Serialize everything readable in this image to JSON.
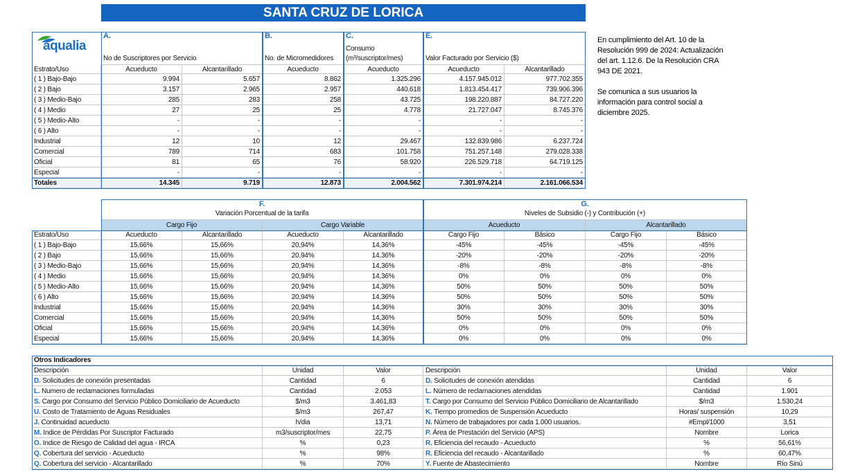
{
  "title": "SANTA CRUZ DE LORICA",
  "logo": "aqualia",
  "notice": [
    [
      "En cumplimiento del Art. 10 de la",
      "Resolución 999 de 2024: Actualización",
      "del art. 1.12.6. De la Resolución CRA",
      "943 DE 2021."
    ],
    [
      "Se comunica a sus usuarios la",
      "información para control social a",
      "diciembre 2025."
    ]
  ],
  "table1": {
    "groups": [
      {
        "letter": "A.",
        "label": "No de Suscriptores por Servicio"
      },
      {
        "letter": "B.",
        "label": "No. de Micromedidores"
      },
      {
        "letter": "C.",
        "label": "Consumo (m³/suscriptor/mes)"
      },
      {
        "letter": "E.",
        "label": "Valor Facturado por Servicio ($)"
      }
    ],
    "columns": [
      "Estrato/Uso",
      "Acueducto",
      "Alcantarillado",
      "Acueducto",
      "Acueducto",
      "Acueducto",
      "Alcantarillado"
    ],
    "rows": [
      [
        "( 1 ) Bajo-Bajo",
        "9.994",
        "5.657",
        "8.862",
        "1.325.296",
        "4.157.945.012",
        "977.702.355"
      ],
      [
        "( 2 ) Bajo",
        "3.157",
        "2.965",
        "2.957",
        "440.618",
        "1.813.454.417",
        "739.906.396"
      ],
      [
        "( 3 ) Medio-Bajo",
        "285",
        "283",
        "258",
        "43.725",
        "198.220.887",
        "84.727.220"
      ],
      [
        "( 4 ) Medio",
        "27",
        "25",
        "25",
        "4.778",
        "21.727.047",
        "8.745.376"
      ],
      [
        "( 5 ) Medio-Alto",
        "-",
        "-",
        "-",
        "-",
        "-",
        "-"
      ],
      [
        "( 6 ) Alto",
        "-",
        "-",
        "-",
        "-",
        "-",
        "-"
      ],
      [
        "Industrial",
        "12",
        "10",
        "12",
        "29.467",
        "132.839.986",
        "6.237.724"
      ],
      [
        "Comercial",
        "789",
        "714",
        "683",
        "101.758",
        "751.257.148",
        "279.028.338"
      ],
      [
        "Oficial",
        "81",
        "65",
        "76",
        "58.920",
        "226.529.718",
        "64.719.125"
      ],
      [
        "Especial",
        "-",
        "-",
        "-",
        "-",
        "-",
        "-"
      ],
      [
        "Totales",
        "14.345",
        "9.719",
        "12.873",
        "2.004.562",
        "7.301.974.214",
        "2.161.066.534"
      ]
    ]
  },
  "table2": {
    "groups": [
      {
        "letter": "F.",
        "label": "Variación Porcentual de la tarifa",
        "subgroups": [
          "Cargo Fijo",
          "Cargo Variable"
        ]
      },
      {
        "letter": "G.",
        "label": "Niveles de Subsidio (-) y Contribución (+)",
        "subgroups": [
          "Acueducto",
          "Alcantarillado"
        ]
      }
    ],
    "columns": [
      "Estrato/Uso",
      "Acueducto",
      "Alcantarillado",
      "Acueducto",
      "Alcantarillado",
      "Cargo Fijo",
      "Básico",
      "Cargo Fijo",
      "Básico"
    ],
    "rows": [
      [
        "( 1 ) Bajo-Bajo",
        "15,66%",
        "15,66%",
        "20,94%",
        "14,36%",
        "-45%",
        "-45%",
        "-45%",
        "-45%"
      ],
      [
        "( 2 ) Bajo",
        "15,66%",
        "15,66%",
        "20,94%",
        "14,36%",
        "-20%",
        "-20%",
        "-20%",
        "-20%"
      ],
      [
        "( 3 ) Medio-Bajo",
        "15,66%",
        "15,66%",
        "20,94%",
        "14,36%",
        "-8%",
        "-8%",
        "-8%",
        "-8%"
      ],
      [
        "( 4 ) Medio",
        "15,66%",
        "15,66%",
        "20,94%",
        "14,36%",
        "0%",
        "0%",
        "0%",
        "0%"
      ],
      [
        "( 5 ) Medio-Alto",
        "15,66%",
        "15,66%",
        "20,94%",
        "14,36%",
        "50%",
        "50%",
        "50%",
        "50%"
      ],
      [
        "( 6 ) Alto",
        "15,66%",
        "15,66%",
        "20,94%",
        "14,36%",
        "50%",
        "50%",
        "50%",
        "50%"
      ],
      [
        "Industrial",
        "15,66%",
        "15,66%",
        "20,94%",
        "14,36%",
        "30%",
        "30%",
        "30%",
        "30%"
      ],
      [
        "Comercial",
        "15,66%",
        "15,66%",
        "20,94%",
        "14,36%",
        "50%",
        "50%",
        "50%",
        "50%"
      ],
      [
        "Oficial",
        "15,66%",
        "15,66%",
        "20,94%",
        "14,36%",
        "0%",
        "0%",
        "0%",
        "0%"
      ],
      [
        "Especial",
        "15,66%",
        "15,66%",
        "20,94%",
        "14,36%",
        "0%",
        "0%",
        "0%",
        "0%"
      ]
    ]
  },
  "table3": {
    "title": "Otros Indicadores",
    "columns": [
      "Descripción",
      "Unidad",
      "Valor"
    ],
    "left": [
      {
        "code": "D.",
        "description": "Solicitudes de conexión presentadas",
        "unit": "Cantidad",
        "value": "6"
      },
      {
        "code": "L.",
        "description": "Numero de reclamaciones formuladas",
        "unit": "Cantidad",
        "value": "2.053"
      },
      {
        "code": "S.",
        "description": "Cargo por Consumo del Servicio Público Domiciliario de Acueducto",
        "unit": "$/m3",
        "value": "3.461,83"
      },
      {
        "code": "U.",
        "description": "Costo de Tratamiento de Aguas Residuales",
        "unit": "$/m3",
        "value": "267,47"
      },
      {
        "code": "J.",
        "description": "Continuidad acueducto",
        "unit": "h/dia",
        "value": "13,71"
      },
      {
        "code": "M.",
        "description": "Indice de Pérdidas Por Suscriptor Facturado",
        "unit": "m3/suscriptor/mes",
        "value": "22,75"
      },
      {
        "code": "O.",
        "description": "Indice de Riesgo de Calidad del agua - IRCA",
        "unit": "%",
        "value": "0,23"
      },
      {
        "code": "Q.",
        "description": "Cobertura del servicio - Acueducto",
        "unit": "%",
        "value": "98%"
      },
      {
        "code": "Q.",
        "description": "Cobertura del servicio - Alcantarillado",
        "unit": "%",
        "value": "70%"
      }
    ],
    "right": [
      {
        "code": "D.",
        "description": "Solicitudes de conexión atendidas",
        "unit": "Cantidad",
        "value": "6"
      },
      {
        "code": "L.",
        "description": "Número de reclamaciones atendidas",
        "unit": "Cantidad",
        "value": "1.901"
      },
      {
        "code": "T.",
        "description": "Cargo por Consumo del Servicio Público Domiciliario de Alcantarillado",
        "unit": "$/m3",
        "value": "1.530,24"
      },
      {
        "code": "K.",
        "description": "Tiempo promedios de Suspensión Acueducto",
        "unit": "Horas/ suspensión",
        "value": "10,29"
      },
      {
        "code": "N.",
        "description": "Número de trabajadores por cada 1.000 usuarios.",
        "unit": "#Empl/1000",
        "value": "3,51"
      },
      {
        "code": "P.",
        "description": "Área de Prestación del Servicio (APS)",
        "unit": "Nombre",
        "value": "Lorica"
      },
      {
        "code": "R.",
        "description": "Eficiencia del recaudo - Acueducto",
        "unit": "%",
        "value": "56,61%"
      },
      {
        "code": "R.",
        "description": "Eficiencia del recaudo - Alcantarillado",
        "unit": "%",
        "value": "60,47%"
      },
      {
        "code": "Y.",
        "description": "Fuente de Abastecimiento",
        "unit": "Nombre",
        "value": "Río Sinú"
      }
    ]
  }
}
